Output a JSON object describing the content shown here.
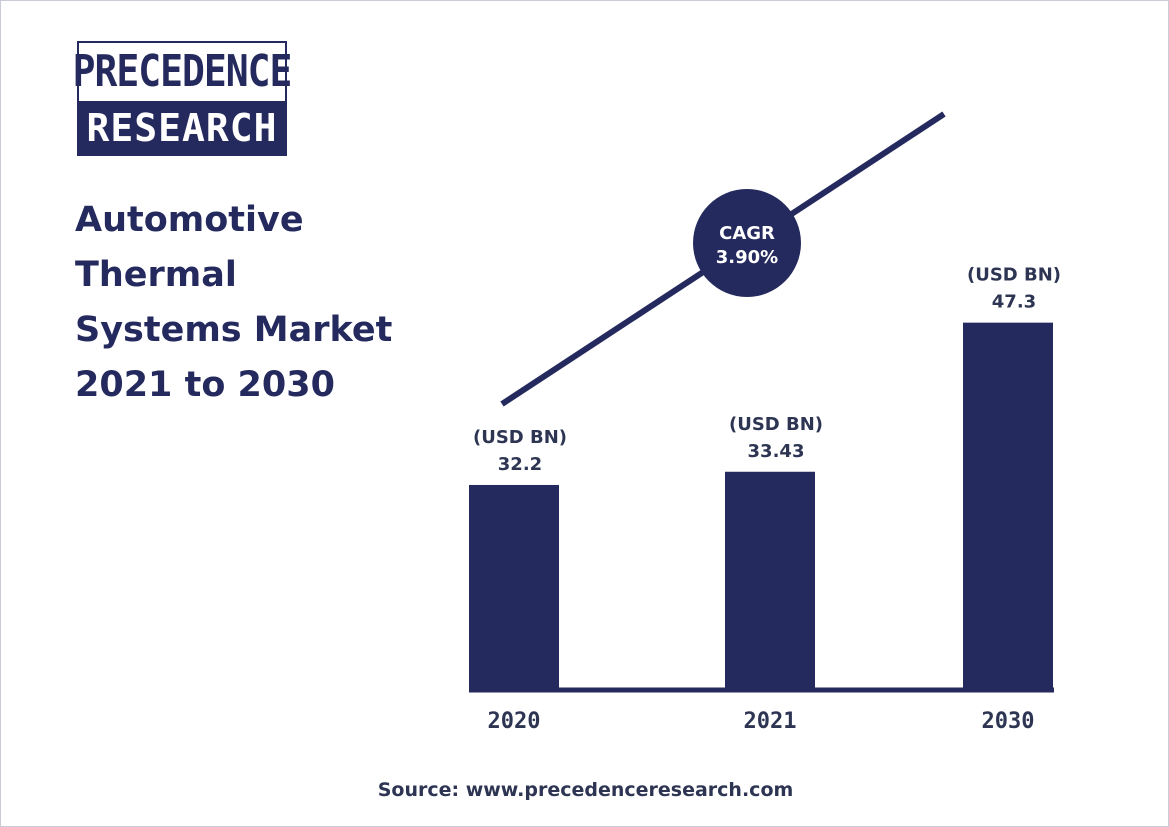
{
  "logo": {
    "line1": "PRECEDENCE",
    "line2": "RESEARCH"
  },
  "title_lines": [
    "Automotive",
    "Thermal",
    "Systems Market",
    "2021 to 2030"
  ],
  "cagr": {
    "label": "CAGR",
    "value": "3.90%"
  },
  "source": "Source: www.precedenceresearch.com",
  "colors": {
    "bar": "#252a5e",
    "text": "#2d3553",
    "trend_line": "#252a5e",
    "background": "#ffffff"
  },
  "chart_data": {
    "type": "bar",
    "categories": [
      "2020",
      "2021",
      "2030"
    ],
    "values": [
      32.2,
      33.43,
      47.3
    ],
    "value_labels": [
      "32.2",
      "33.43",
      "47.3"
    ],
    "unit_label": "(USD BN)",
    "title": "Automotive Thermal Systems Market 2021 to 2030",
    "xlabel": "",
    "ylabel": "",
    "grid": false,
    "annotation": "CAGR 3.90%"
  }
}
